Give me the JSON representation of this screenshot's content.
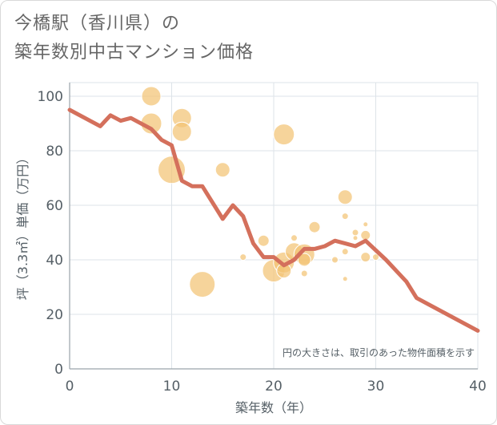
{
  "title_line1": "今橋駅（香川県）の",
  "title_line2": "築年数別中古マンション価格",
  "chart_data": {
    "type": "scatter",
    "xlabel": "築年数（年）",
    "ylabel": "坪（3.3㎡）単価（万円）",
    "xlim": [
      0,
      40
    ],
    "ylim": [
      0,
      105
    ],
    "xticks": [
      "0",
      "10",
      "20",
      "30",
      "40"
    ],
    "yticks": [
      "0",
      "20",
      "40",
      "60",
      "80",
      "100"
    ],
    "grid": true,
    "note": "円の大きさは、取引のあった物件面積を示す",
    "colors": {
      "bubble": "#f3c374",
      "line": "#d4705c",
      "grid": "#dde3e8"
    },
    "scatter": [
      {
        "x": 8,
        "y": 100,
        "s": 12
      },
      {
        "x": 8,
        "y": 90,
        "s": 13
      },
      {
        "x": 11,
        "y": 92,
        "s": 12
      },
      {
        "x": 11,
        "y": 87,
        "s": 12
      },
      {
        "x": 10,
        "y": 73,
        "s": 17
      },
      {
        "x": 13,
        "y": 31,
        "s": 16
      },
      {
        "x": 15,
        "y": 73,
        "s": 9
      },
      {
        "x": 17,
        "y": 41,
        "s": 4
      },
      {
        "x": 19,
        "y": 47,
        "s": 7
      },
      {
        "x": 20,
        "y": 36,
        "s": 14
      },
      {
        "x": 21,
        "y": 86,
        "s": 13
      },
      {
        "x": 21,
        "y": 39,
        "s": 13
      },
      {
        "x": 21,
        "y": 36,
        "s": 9
      },
      {
        "x": 22,
        "y": 43,
        "s": 11
      },
      {
        "x": 22,
        "y": 48,
        "s": 4
      },
      {
        "x": 23,
        "y": 42,
        "s": 13
      },
      {
        "x": 23,
        "y": 40,
        "s": 8
      },
      {
        "x": 23,
        "y": 35,
        "s": 4
      },
      {
        "x": 24,
        "y": 52,
        "s": 7
      },
      {
        "x": 26,
        "y": 40,
        "s": 4
      },
      {
        "x": 27,
        "y": 63,
        "s": 9
      },
      {
        "x": 27,
        "y": 56,
        "s": 4
      },
      {
        "x": 27,
        "y": 43,
        "s": 4
      },
      {
        "x": 27,
        "y": 33,
        "s": 3
      },
      {
        "x": 28,
        "y": 50,
        "s": 4
      },
      {
        "x": 28,
        "y": 48,
        "s": 3
      },
      {
        "x": 29,
        "y": 53,
        "s": 3
      },
      {
        "x": 29,
        "y": 49,
        "s": 6
      },
      {
        "x": 29,
        "y": 41,
        "s": 6
      },
      {
        "x": 30,
        "y": 41,
        "s": 4
      }
    ],
    "line": [
      {
        "x": 0,
        "y": 95
      },
      {
        "x": 3,
        "y": 89
      },
      {
        "x": 4,
        "y": 93
      },
      {
        "x": 5,
        "y": 91
      },
      {
        "x": 6,
        "y": 92
      },
      {
        "x": 8,
        "y": 88
      },
      {
        "x": 9,
        "y": 84
      },
      {
        "x": 10,
        "y": 82
      },
      {
        "x": 11,
        "y": 69
      },
      {
        "x": 12,
        "y": 67
      },
      {
        "x": 13,
        "y": 67
      },
      {
        "x": 15,
        "y": 55
      },
      {
        "x": 16,
        "y": 60
      },
      {
        "x": 17,
        "y": 56
      },
      {
        "x": 18,
        "y": 46
      },
      {
        "x": 19,
        "y": 41
      },
      {
        "x": 20,
        "y": 41
      },
      {
        "x": 21,
        "y": 38
      },
      {
        "x": 22,
        "y": 40
      },
      {
        "x": 23,
        "y": 44
      },
      {
        "x": 24,
        "y": 44
      },
      {
        "x": 25,
        "y": 45
      },
      {
        "x": 26,
        "y": 47
      },
      {
        "x": 27,
        "y": 46
      },
      {
        "x": 28,
        "y": 45
      },
      {
        "x": 29,
        "y": 47
      },
      {
        "x": 31,
        "y": 40
      },
      {
        "x": 33,
        "y": 32
      },
      {
        "x": 34,
        "y": 26
      },
      {
        "x": 40,
        "y": 14
      }
    ]
  }
}
